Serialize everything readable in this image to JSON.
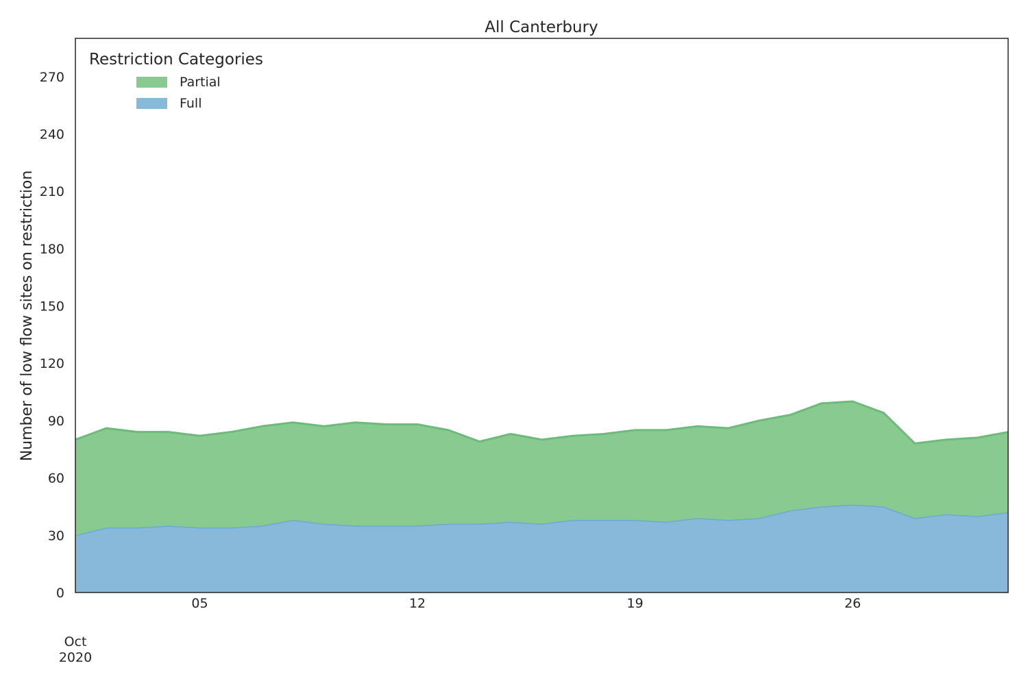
{
  "chart_data": {
    "type": "area",
    "stacked": true,
    "title": "All Canterbury",
    "xlabel": "",
    "ylabel": "Number of low flow sites on restriction",
    "x": [
      "2020-10-01",
      "2020-10-02",
      "2020-10-03",
      "2020-10-04",
      "2020-10-05",
      "2020-10-06",
      "2020-10-07",
      "2020-10-08",
      "2020-10-09",
      "2020-10-10",
      "2020-10-11",
      "2020-10-12",
      "2020-10-13",
      "2020-10-14",
      "2020-10-15",
      "2020-10-16",
      "2020-10-17",
      "2020-10-18",
      "2020-10-19",
      "2020-10-20",
      "2020-10-21",
      "2020-10-22",
      "2020-10-23",
      "2020-10-24",
      "2020-10-25",
      "2020-10-26",
      "2020-10-27",
      "2020-10-28",
      "2020-10-29",
      "2020-10-30",
      "2020-10-31"
    ],
    "series": [
      {
        "name": "Full",
        "color": "#88b9da",
        "line_color": "#6aaad3",
        "values": [
          30,
          34,
          34,
          35,
          34,
          34,
          35,
          38,
          36,
          35,
          35,
          35,
          36,
          36,
          37,
          36,
          38,
          38,
          38,
          37,
          39,
          38,
          39,
          43,
          45,
          46,
          45,
          39,
          41,
          40,
          42
        ]
      },
      {
        "name": "Partial",
        "color": "#88ca90",
        "line_color": "#6dbb7a",
        "values": [
          50,
          52,
          50,
          49,
          48,
          50,
          52,
          51,
          51,
          54,
          53,
          53,
          49,
          43,
          46,
          44,
          44,
          45,
          47,
          48,
          48,
          48,
          51,
          50,
          54,
          54,
          49,
          39,
          39,
          41,
          42
        ]
      }
    ],
    "ylim": [
      0,
      290
    ],
    "yticks": [
      "0",
      "30",
      "60",
      "90",
      "120",
      "150",
      "180",
      "210",
      "240",
      "270"
    ],
    "xticks": [
      {
        "date": "2020-10-05",
        "label": "05"
      },
      {
        "date": "2020-10-12",
        "label": "12"
      },
      {
        "date": "2020-10-19",
        "label": "19"
      },
      {
        "date": "2020-10-26",
        "label": "26"
      }
    ],
    "x_major_label": [
      "Oct",
      "2020"
    ],
    "legend": {
      "title": "Restriction Categories",
      "placement": "top-left",
      "entries": [
        "Partial",
        "Full"
      ]
    },
    "grid": false
  }
}
